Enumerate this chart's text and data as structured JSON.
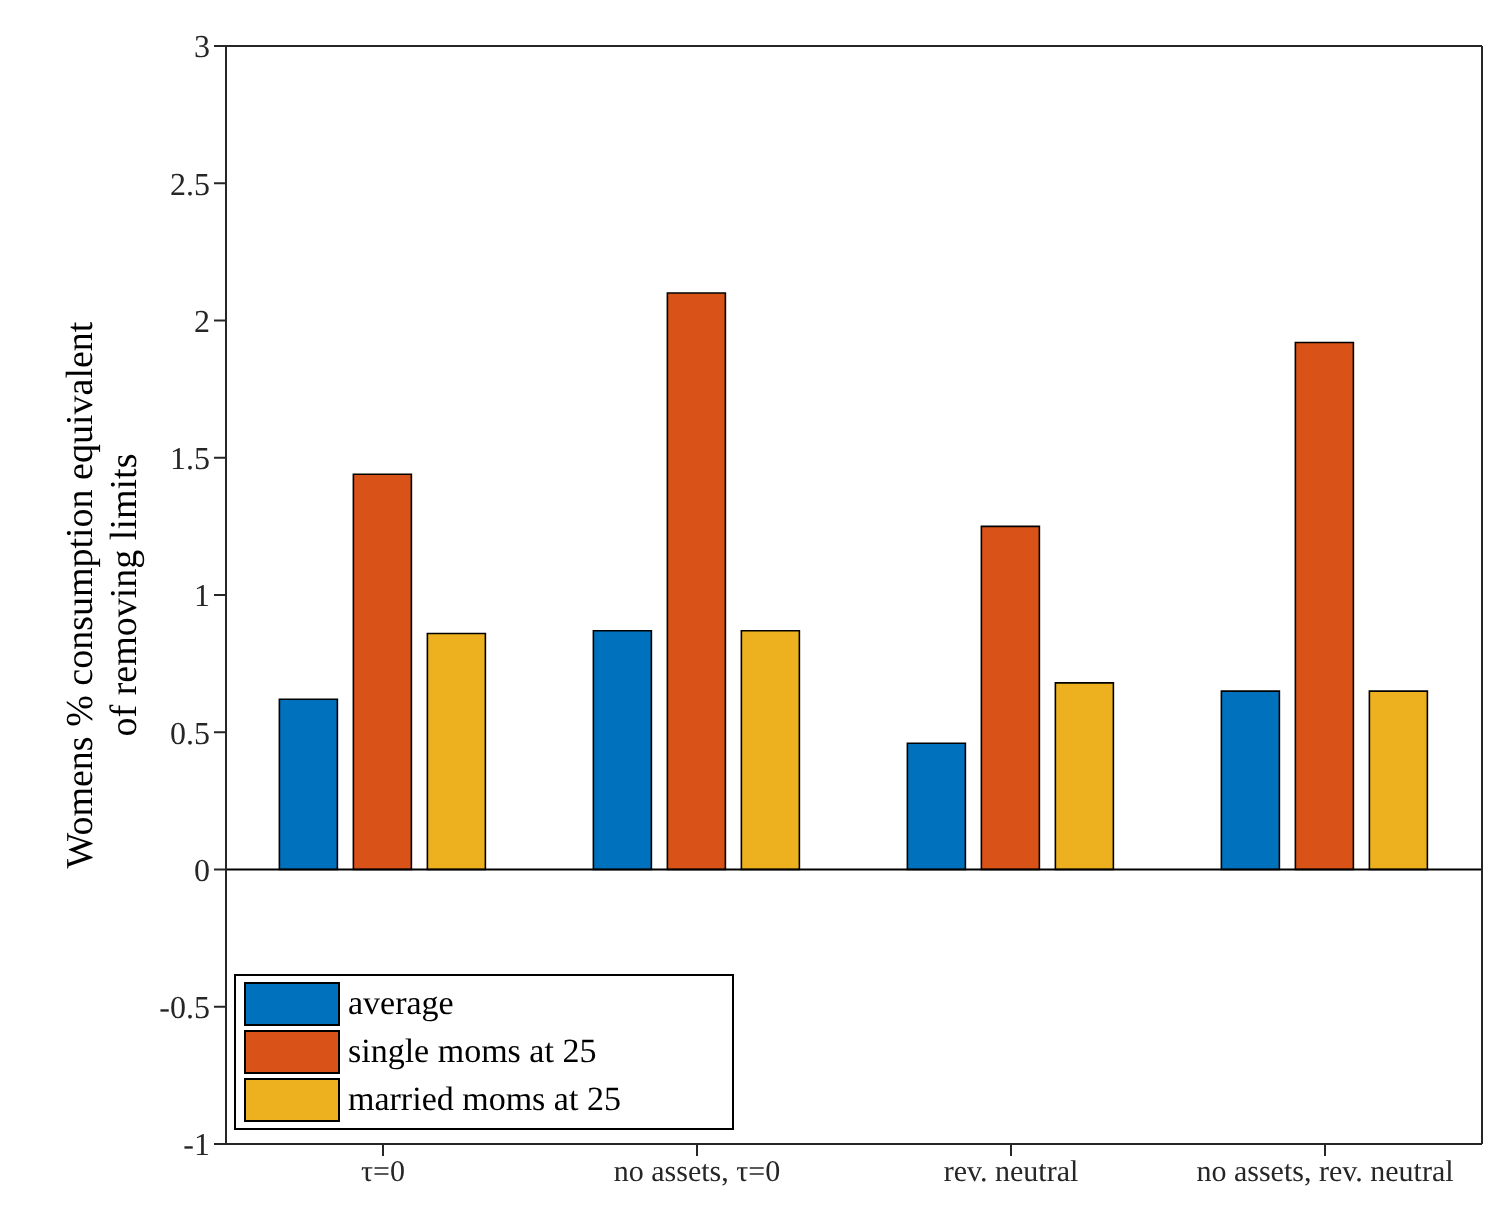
{
  "chart_data": {
    "type": "bar",
    "ylabel": "Womens % consumption equivalent\nof removing limits",
    "categories": [
      "τ=0",
      "no assets, τ=0",
      "rev. neutral",
      "no assets, rev. neutral"
    ],
    "series": [
      {
        "name": "average",
        "color": "#0072bd",
        "values": [
          0.62,
          0.87,
          0.46,
          0.65
        ]
      },
      {
        "name": "single moms at 25",
        "color": "#d95319",
        "values": [
          1.44,
          2.1,
          1.25,
          1.92
        ]
      },
      {
        "name": "married moms at 25",
        "color": "#edb120",
        "values": [
          0.86,
          0.87,
          0.68,
          0.65
        ]
      }
    ],
    "ylim": [
      -1,
      3
    ],
    "yticks": [
      -1,
      -0.5,
      0,
      0.5,
      1,
      1.5,
      2,
      2.5,
      3
    ],
    "ref_lines": [
      {
        "axis": "y",
        "value": 0,
        "color": "#000000"
      }
    ],
    "grid": false,
    "legend": "bottom left"
  }
}
